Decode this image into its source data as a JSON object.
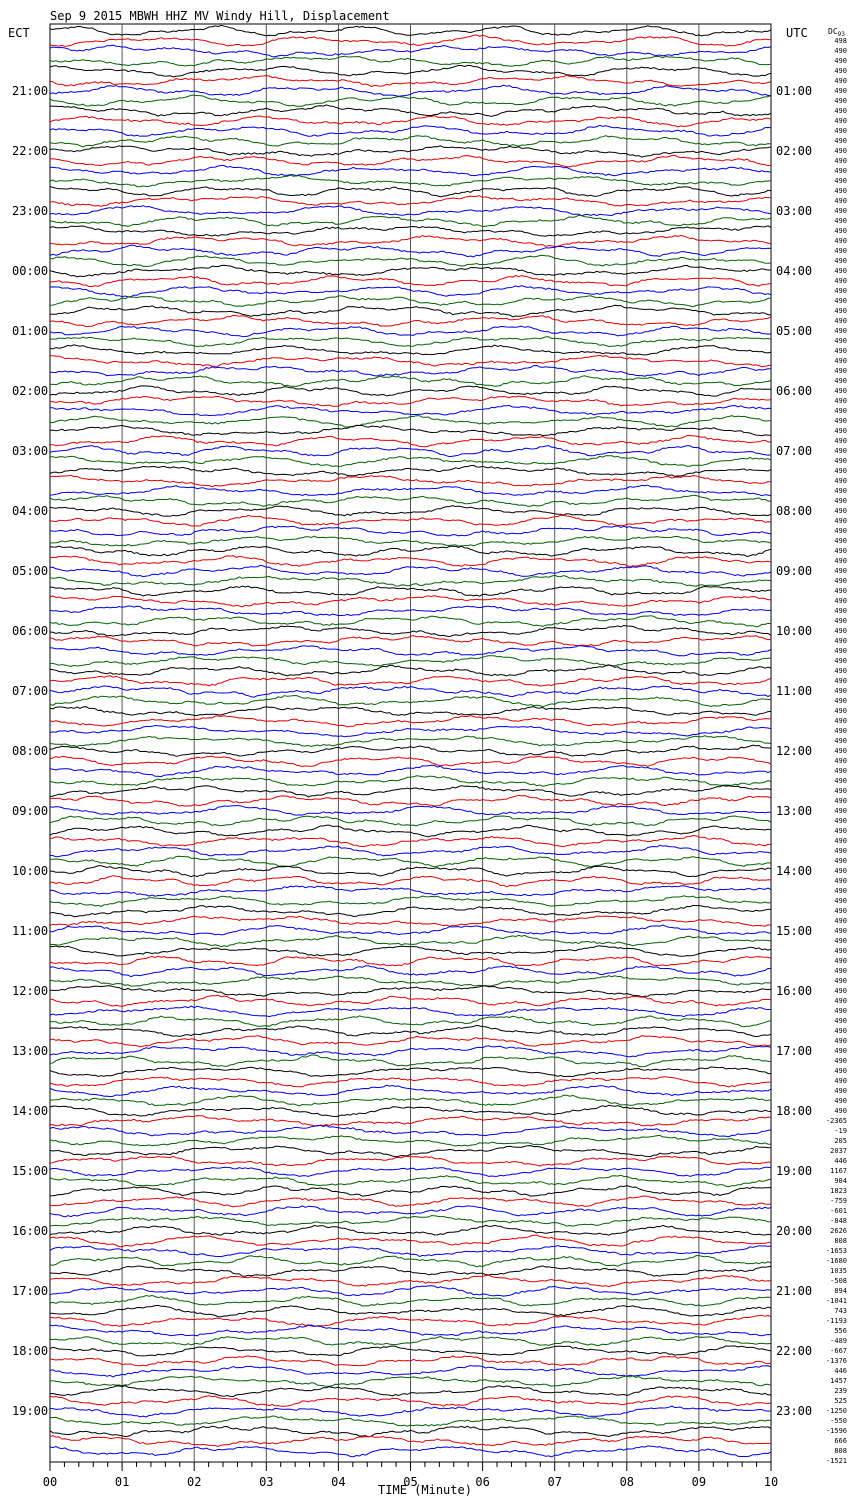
{
  "title": "Sep  9 2015 MBWH HHZ MV Windy Hill, Displacement",
  "left_zone": "ECT",
  "right_zone": "UTC",
  "dc_header": "DC",
  "dc_suffix": "93",
  "xlabel": "TIME (Minute)",
  "chart_data": {
    "type": "line",
    "title": "Sep  9 2015 MBWH HHZ MV Windy Hill, Displacement",
    "xlabel": "TIME (Minute)",
    "x_ticks": [
      "00",
      "01",
      "02",
      "03",
      "04",
      "05",
      "06",
      "07",
      "08",
      "09",
      "10"
    ],
    "xlim": [
      0,
      10
    ],
    "minutes_per_trace": 10,
    "traces_per_hour": 6,
    "left_hour_labels": [
      "21:00",
      "22:00",
      "23:00",
      "00:00",
      "01:00",
      "02:00",
      "03:00",
      "04:00",
      "05:00",
      "06:00",
      "07:00",
      "08:00",
      "09:00",
      "10:00",
      "11:00",
      "12:00",
      "13:00",
      "14:00",
      "15:00",
      "16:00",
      "17:00",
      "18:00",
      "19:00"
    ],
    "right_hour_labels": [
      "01:00",
      "02:00",
      "03:00",
      "04:00",
      "05:00",
      "06:00",
      "07:00",
      "08:00",
      "09:00",
      "10:00",
      "11:00",
      "12:00",
      "13:00",
      "14:00",
      "15:00",
      "16:00",
      "17:00",
      "18:00",
      "19:00",
      "20:00",
      "21:00",
      "22:00",
      "23:00"
    ],
    "trace_colors": [
      "#000000",
      "#e00000",
      "#0000e0",
      "#006400"
    ],
    "dc_offsets": [
      498,
      490,
      490,
      490,
      490,
      490,
      490,
      490,
      490,
      490,
      490,
      490,
      490,
      490,
      490,
      490,
      490,
      490,
      490,
      490,
      490,
      490,
      490,
      490,
      490,
      490,
      490,
      490,
      490,
      490,
      490,
      490,
      490,
      490,
      490,
      490,
      490,
      490,
      490,
      490,
      490,
      490,
      490,
      490,
      490,
      490,
      490,
      490,
      490,
      490,
      490,
      490,
      490,
      490,
      490,
      490,
      490,
      490,
      490,
      490,
      490,
      490,
      490,
      490,
      490,
      490,
      490,
      490,
      490,
      490,
      490,
      490,
      490,
      490,
      490,
      490,
      490,
      490,
      490,
      490,
      490,
      490,
      490,
      490,
      490,
      490,
      490,
      490,
      490,
      490,
      490,
      490,
      490,
      490,
      490,
      490,
      490,
      490,
      490,
      490,
      490,
      490,
      490,
      490,
      490,
      490,
      490,
      490,
      -2365,
      -19,
      205,
      2037,
      446,
      1167,
      904,
      1823,
      -759,
      -601,
      -848,
      2626,
      808,
      -1653,
      -1680,
      1035,
      -508,
      894,
      -1041,
      743,
      -1193,
      556,
      -489,
      -667,
      -1376,
      446,
      1457,
      239,
      525,
      -1250,
      -550,
      -1596,
      666,
      808,
      -1521
    ]
  }
}
